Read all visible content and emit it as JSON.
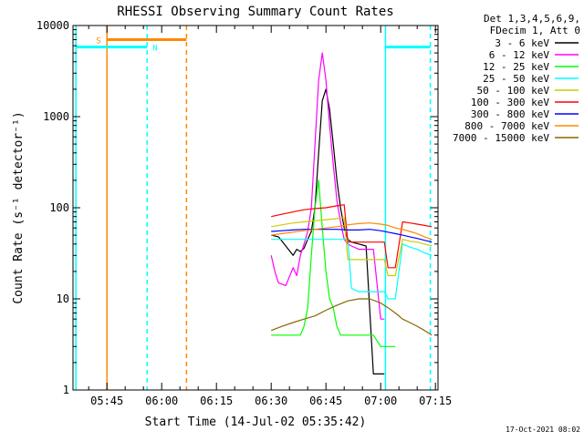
{
  "chart_data": {
    "type": "line",
    "title": "RHESSI Observing Summary Count Rates",
    "xlabel": "Start Time (14-Jul-02 05:35:42)",
    "ylabel": "Count Rate (s⁻¹ detector⁻¹)",
    "y_scale": "log",
    "ylim": [
      1,
      10000
    ],
    "xlim_minutes": [
      335.7,
      435.7
    ],
    "x_ticks": [
      {
        "label": "05:45",
        "value": 345
      },
      {
        "label": "06:00",
        "value": 360
      },
      {
        "label": "06:15",
        "value": 375
      },
      {
        "label": "06:30",
        "value": 390
      },
      {
        "label": "06:45",
        "value": 405
      },
      {
        "label": "07:00",
        "value": 420
      },
      {
        "label": "07:15",
        "value": 435
      }
    ],
    "y_ticks": [
      {
        "label": "1",
        "value": 1
      },
      {
        "label": "10",
        "value": 10
      },
      {
        "label": "100",
        "value": 100
      },
      {
        "label": "1000",
        "value": 1000
      },
      {
        "label": "10000",
        "value": 10000
      }
    ],
    "legend_header": [
      "Det 1,3,4,5,6,9,",
      "FDecim 1, Att 0"
    ],
    "legend_position": "right",
    "series": [
      {
        "name": "3 - 6 keV",
        "color": "#000000",
        "x": [
          390,
          392,
          394,
          396,
          397,
          398,
          399,
          400,
          401,
          402,
          403,
          404,
          405,
          406,
          407,
          408,
          409,
          410,
          411,
          412,
          414,
          416,
          418,
          420,
          421
        ],
        "y": [
          50,
          48,
          38,
          30,
          35,
          33,
          36,
          45,
          55,
          100,
          400,
          1500,
          2000,
          1200,
          500,
          200,
          100,
          60,
          45,
          42,
          40,
          38,
          1.5,
          1.5,
          1.5
        ]
      },
      {
        "name": "6 - 12 keV",
        "color": "#ff00ff",
        "x": [
          390,
          391,
          392,
          394,
          396,
          397,
          398,
          399,
          400,
          401,
          402,
          403,
          404,
          405,
          406,
          407,
          408,
          409,
          410,
          411,
          412,
          414,
          416,
          418,
          420,
          421
        ],
        "y": [
          30,
          20,
          15,
          14,
          22,
          18,
          30,
          40,
          55,
          100,
          500,
          2500,
          5000,
          2500,
          800,
          300,
          120,
          70,
          45,
          40,
          38,
          35,
          35,
          35,
          6,
          6
        ]
      },
      {
        "name": "12 - 25 keV",
        "color": "#00ff00",
        "x": [
          390,
          393,
          396,
          398,
          399,
          400,
          401,
          402,
          403,
          404,
          405,
          406,
          407,
          408,
          409,
          410,
          412,
          414,
          416,
          418,
          420,
          422,
          424
        ],
        "y": [
          4,
          4,
          4,
          4,
          5,
          8,
          30,
          100,
          200,
          60,
          20,
          10,
          8,
          5,
          4,
          4,
          4,
          4,
          4,
          4,
          3,
          3,
          3
        ]
      },
      {
        "name": "25 - 50 keV",
        "color": "#00ffff",
        "x": [
          390,
          393,
          396,
          399,
          402,
          405,
          408,
          411,
          412,
          414,
          416,
          418,
          420,
          421,
          422,
          424,
          426,
          428,
          430,
          432,
          434
        ],
        "y": [
          45,
          45,
          45,
          45,
          45,
          45,
          45,
          45,
          13,
          12,
          12,
          12,
          12,
          12,
          10,
          10,
          40,
          37,
          35,
          32,
          30
        ]
      },
      {
        "name": "50 - 100 keV",
        "color": "#cccc00",
        "x": [
          390,
          393,
          396,
          399,
          402,
          405,
          408,
          410,
          411,
          414,
          416,
          418,
          420,
          421,
          422,
          424,
          426,
          428,
          430,
          432,
          434
        ],
        "y": [
          62,
          65,
          68,
          70,
          72,
          74,
          76,
          78,
          27,
          27,
          27,
          27,
          27,
          27,
          18,
          18,
          45,
          43,
          42,
          40,
          38
        ]
      },
      {
        "name": "100 - 300 keV",
        "color": "#ff0000",
        "x": [
          390,
          393,
          396,
          399,
          402,
          405,
          408,
          410,
          411,
          414,
          416,
          418,
          420,
          421,
          422,
          424,
          426,
          428,
          430,
          432,
          434
        ],
        "y": [
          80,
          85,
          90,
          95,
          98,
          100,
          105,
          108,
          42,
          42,
          42,
          42,
          42,
          42,
          22,
          22,
          70,
          68,
          66,
          64,
          62
        ]
      },
      {
        "name": "300 - 800 keV",
        "color": "#0000ff",
        "x": [
          390,
          393,
          396,
          399,
          402,
          405,
          408,
          411,
          414,
          417,
          420,
          422,
          424,
          426,
          428,
          430,
          432,
          434
        ],
        "y": [
          55,
          56,
          57,
          58,
          58,
          58,
          58,
          57,
          57,
          58,
          56,
          54,
          52,
          50,
          48,
          46,
          44,
          42
        ]
      },
      {
        "name": "800 - 7000 keV",
        "color": "#ff8800",
        "x": [
          390,
          393,
          396,
          399,
          402,
          405,
          408,
          411,
          414,
          417,
          420,
          422,
          424,
          426,
          428,
          430,
          432,
          434
        ],
        "y": [
          50,
          52,
          54,
          56,
          58,
          60,
          62,
          65,
          67,
          68,
          66,
          64,
          60,
          58,
          55,
          52,
          48,
          45
        ]
      },
      {
        "name": "7000 - 15000 keV",
        "color": "#886600",
        "x": [
          390,
          393,
          396,
          399,
          402,
          405,
          408,
          411,
          414,
          417,
          420,
          422,
          424,
          426,
          428,
          430,
          432,
          434
        ],
        "y": [
          4.5,
          5,
          5.5,
          6,
          6.5,
          7.5,
          8.5,
          9.5,
          10,
          10,
          9,
          8,
          7,
          6,
          5.5,
          5,
          4.5,
          4
        ]
      }
    ],
    "vertical_markers": [
      {
        "x": 336.5,
        "color": "#00ffff",
        "style": "solid"
      },
      {
        "x": 345.0,
        "color": "#ff8800",
        "style": "solid"
      },
      {
        "x": 356.0,
        "color": "#00ffff",
        "style": "dashed"
      },
      {
        "x": 366.8,
        "color": "#ff8800",
        "style": "dashed"
      },
      {
        "x": 421.3,
        "color": "#00ffff",
        "style": "solid"
      },
      {
        "x": 433.6,
        "color": "#00ffff",
        "style": "dashed"
      }
    ],
    "flag_bars": [
      {
        "label": "S",
        "color": "#ff8800",
        "x_start": 345.0,
        "x_end": 366.8,
        "y": 7000
      },
      {
        "label": "N",
        "color": "#00ffff",
        "x_start": 336.5,
        "x_end": 356.0,
        "y": 5800
      },
      {
        "label": "",
        "color": "#00ffff",
        "x_start": 421.3,
        "x_end": 433.6,
        "y": 5800
      }
    ]
  },
  "footer": {
    "date": "17-Oct-2021 08:02"
  }
}
